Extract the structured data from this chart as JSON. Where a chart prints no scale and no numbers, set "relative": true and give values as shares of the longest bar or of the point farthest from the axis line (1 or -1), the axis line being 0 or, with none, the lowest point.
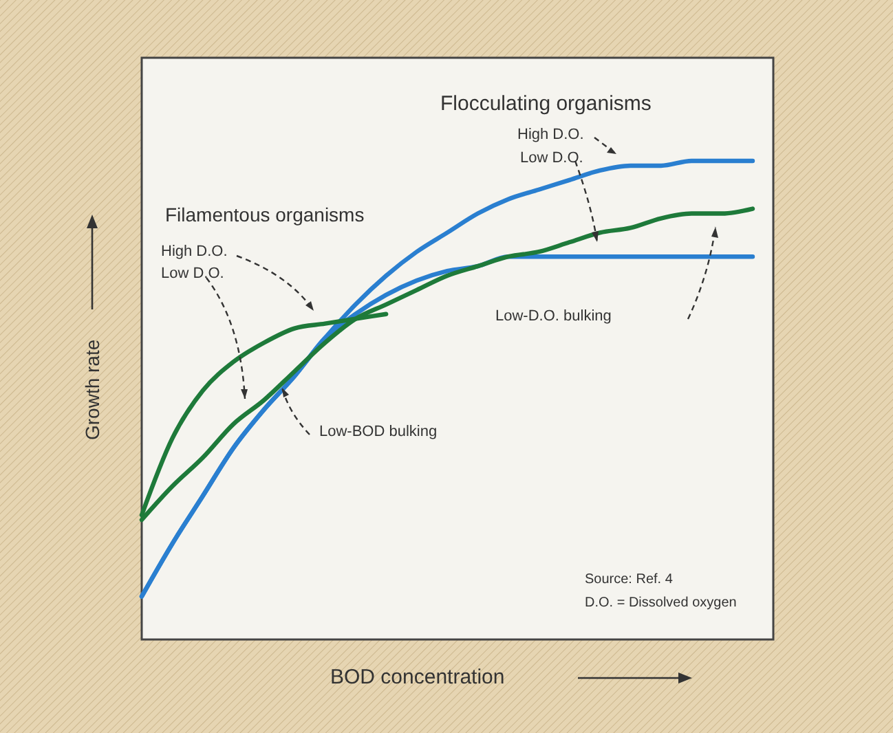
{
  "chart_data": {
    "type": "line",
    "relative": true,
    "xlabel": "BOD concentration",
    "ylabel": "Growth rate",
    "categories": [
      null,
      null,
      null,
      null,
      null,
      null,
      null,
      null,
      null,
      null,
      null,
      null,
      null,
      null,
      null,
      null,
      null,
      null,
      null,
      null,
      null
    ],
    "series": [
      {
        "color": "#2a7fd0",
        "values": [
          0.09,
          0.2,
          0.3,
          0.4,
          0.48,
          0.55,
          0.63,
          0.7,
          0.76,
          0.81,
          0.85,
          0.89,
          0.92,
          0.94,
          0.96,
          0.98,
          0.99,
          0.99,
          1,
          1,
          1
        ]
      },
      {
        "color": "#2a7fd0",
        "values": [
          0.09,
          0.2,
          0.3,
          0.4,
          0.48,
          0.55,
          0.63,
          0.68,
          0.72,
          0.75,
          0.77,
          0.78,
          0.8,
          0.8,
          0.8,
          0.8,
          0.8,
          0.8,
          0.8,
          0.8,
          0.8
        ]
      },
      {
        "color": "#1e7a3a",
        "values": [
          0.25,
          0.32,
          0.38,
          0.45,
          0.5,
          0.56,
          0.62,
          0.67,
          0.7,
          0.73,
          0.76,
          0.78,
          0.8,
          0.81,
          0.83,
          0.85,
          0.86,
          0.88,
          0.89,
          0.89,
          0.9
        ]
      },
      {
        "color": "#1e7a3a",
        "values": [
          0.26,
          0.42,
          0.52,
          0.58,
          0.62,
          0.65,
          0.66,
          0.67,
          0.68,
          null,
          null,
          null,
          null,
          null,
          null,
          null,
          null,
          null,
          null,
          null,
          null
        ]
      }
    ],
    "annotations": [
      "Flocculating organisms",
      "High D.O.",
      "Low D.O.",
      "Filamentous organisms",
      "High D.O.",
      "Low D.O.",
      "Low-D.O. bulking",
      "Low-BOD bulking",
      "Source: Ref. 4",
      "D.O. = Dissolved oxygen"
    ]
  }
}
